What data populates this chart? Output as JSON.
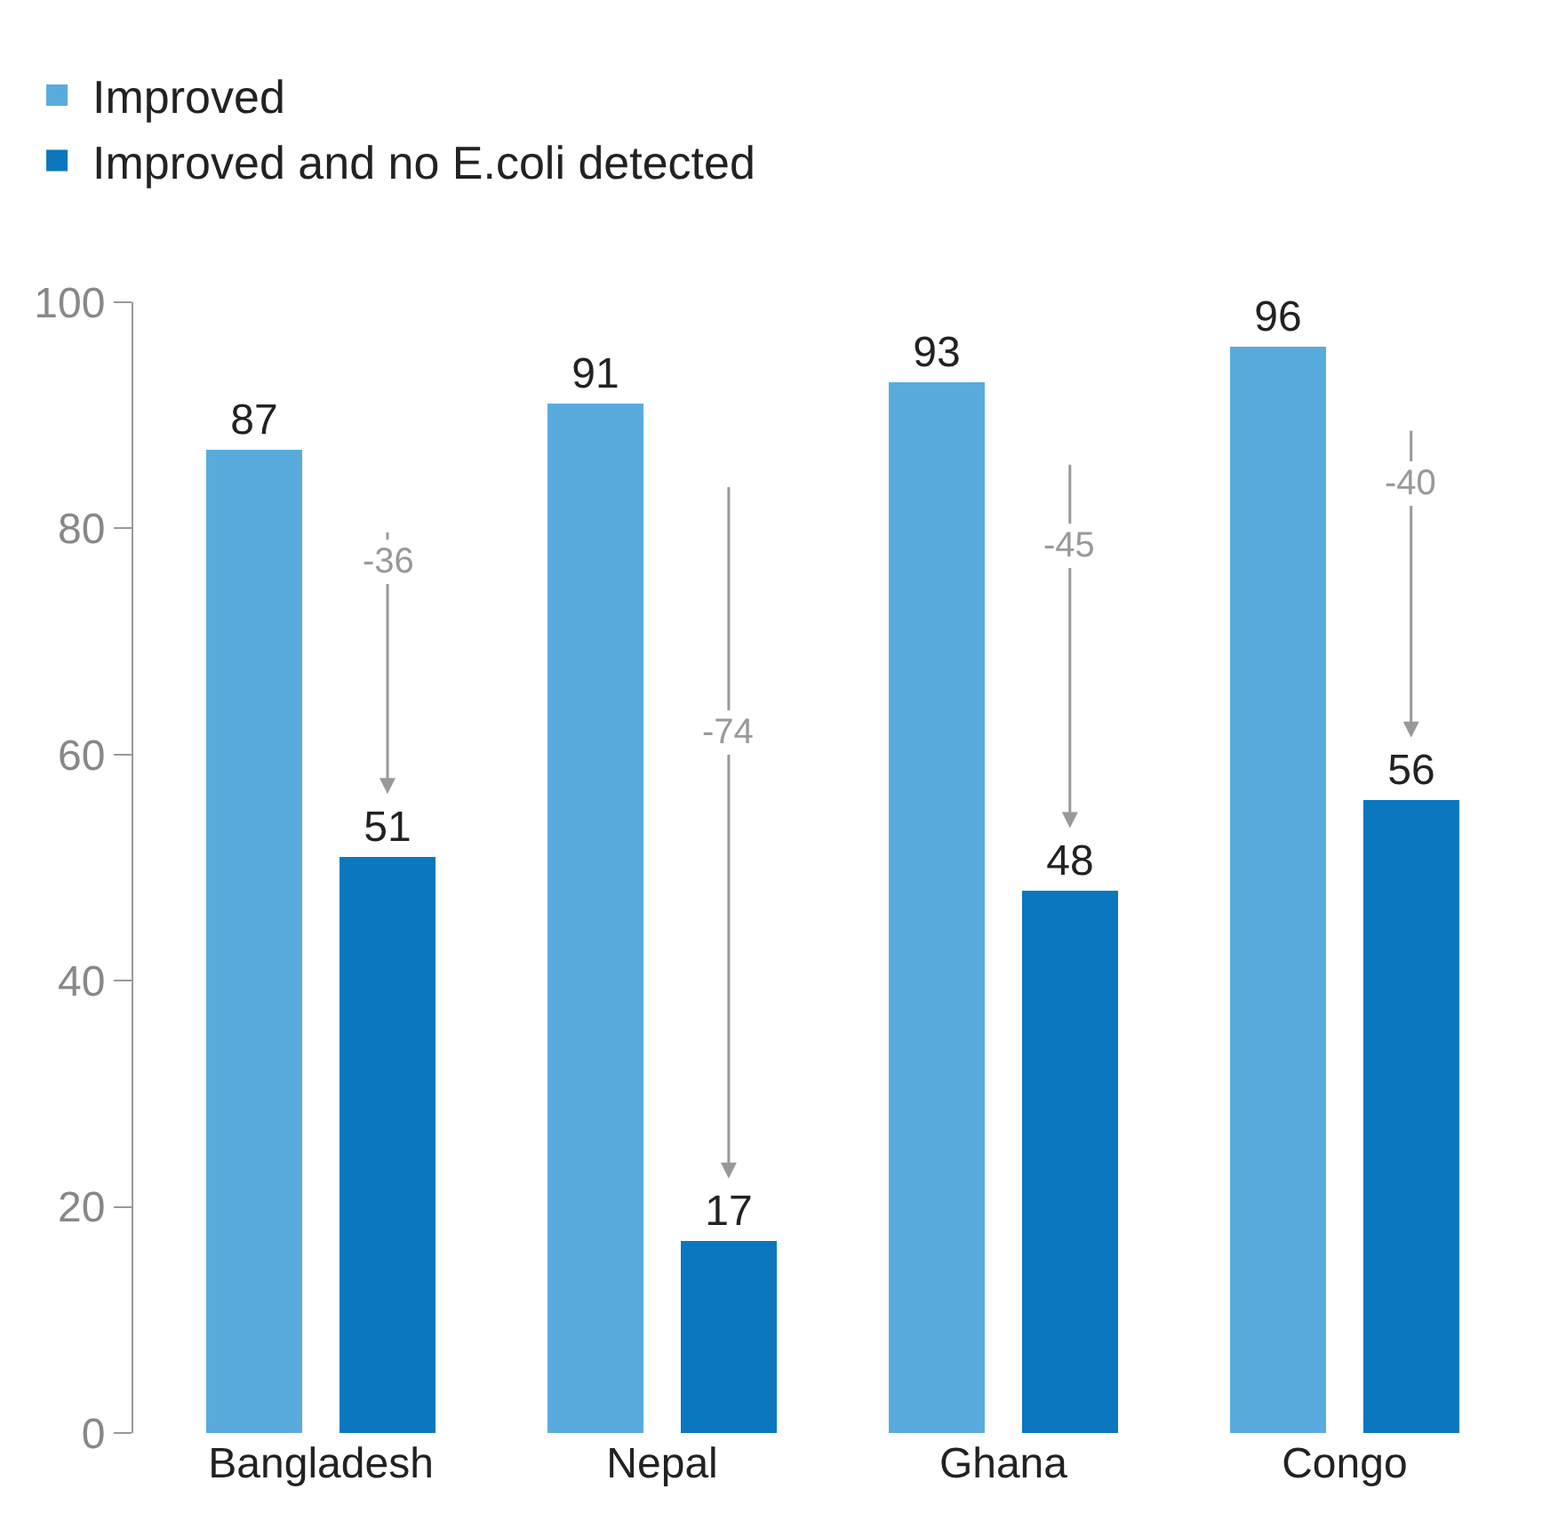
{
  "chart_data": {
    "type": "bar",
    "categories": [
      "Bangladesh",
      "Nepal",
      "Ghana",
      "Congo"
    ],
    "series": [
      {
        "name": "Improved",
        "color": "#5aabdd",
        "values": [
          87,
          91,
          93,
          96
        ]
      },
      {
        "name": "Improved and no E.coli detected",
        "color": "#0a77bf",
        "values": [
          51,
          17,
          48,
          56
        ]
      }
    ],
    "ylim": [
      0,
      100
    ],
    "yticks": [
      0,
      20,
      40,
      60,
      80,
      100
    ],
    "legend": "top left",
    "data_labels": true,
    "annotations": [
      "-36",
      "-74",
      "-45",
      "-40"
    ]
  }
}
